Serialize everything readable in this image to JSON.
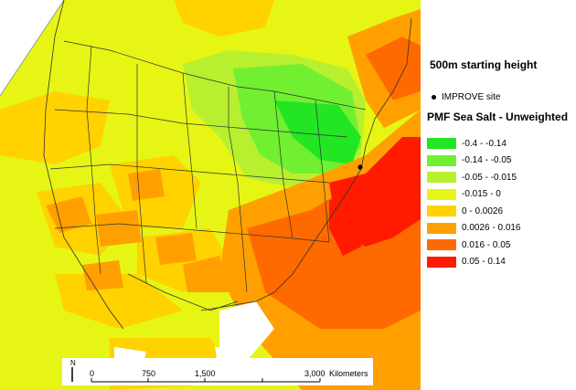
{
  "map": {
    "starting_height": "500m starting height",
    "site_label": "IMPROVE site",
    "layer_title": "PMF Sea Salt - Unweighted",
    "legend": [
      {
        "label": "-0.4 - -0.14",
        "color": "#22e622"
      },
      {
        "label": "-0.14 - -0.05",
        "color": "#70f030"
      },
      {
        "label": "-0.05 - -0.015",
        "color": "#b8f030"
      },
      {
        "label": "-0.015 - 0",
        "color": "#e6f514"
      },
      {
        "label": "0 - 0.0026",
        "color": "#ffd200"
      },
      {
        "label": "0.0026 - 0.016",
        "color": "#ffa000"
      },
      {
        "label": "0.016 - 0.05",
        "color": "#ff6a00"
      },
      {
        "label": "0.05 - 0.14",
        "color": "#ff1a00"
      }
    ],
    "scale": {
      "north": "N",
      "ticks": [
        "0",
        "750",
        "1,500",
        "3,000"
      ],
      "unit": "Kilometers"
    }
  }
}
